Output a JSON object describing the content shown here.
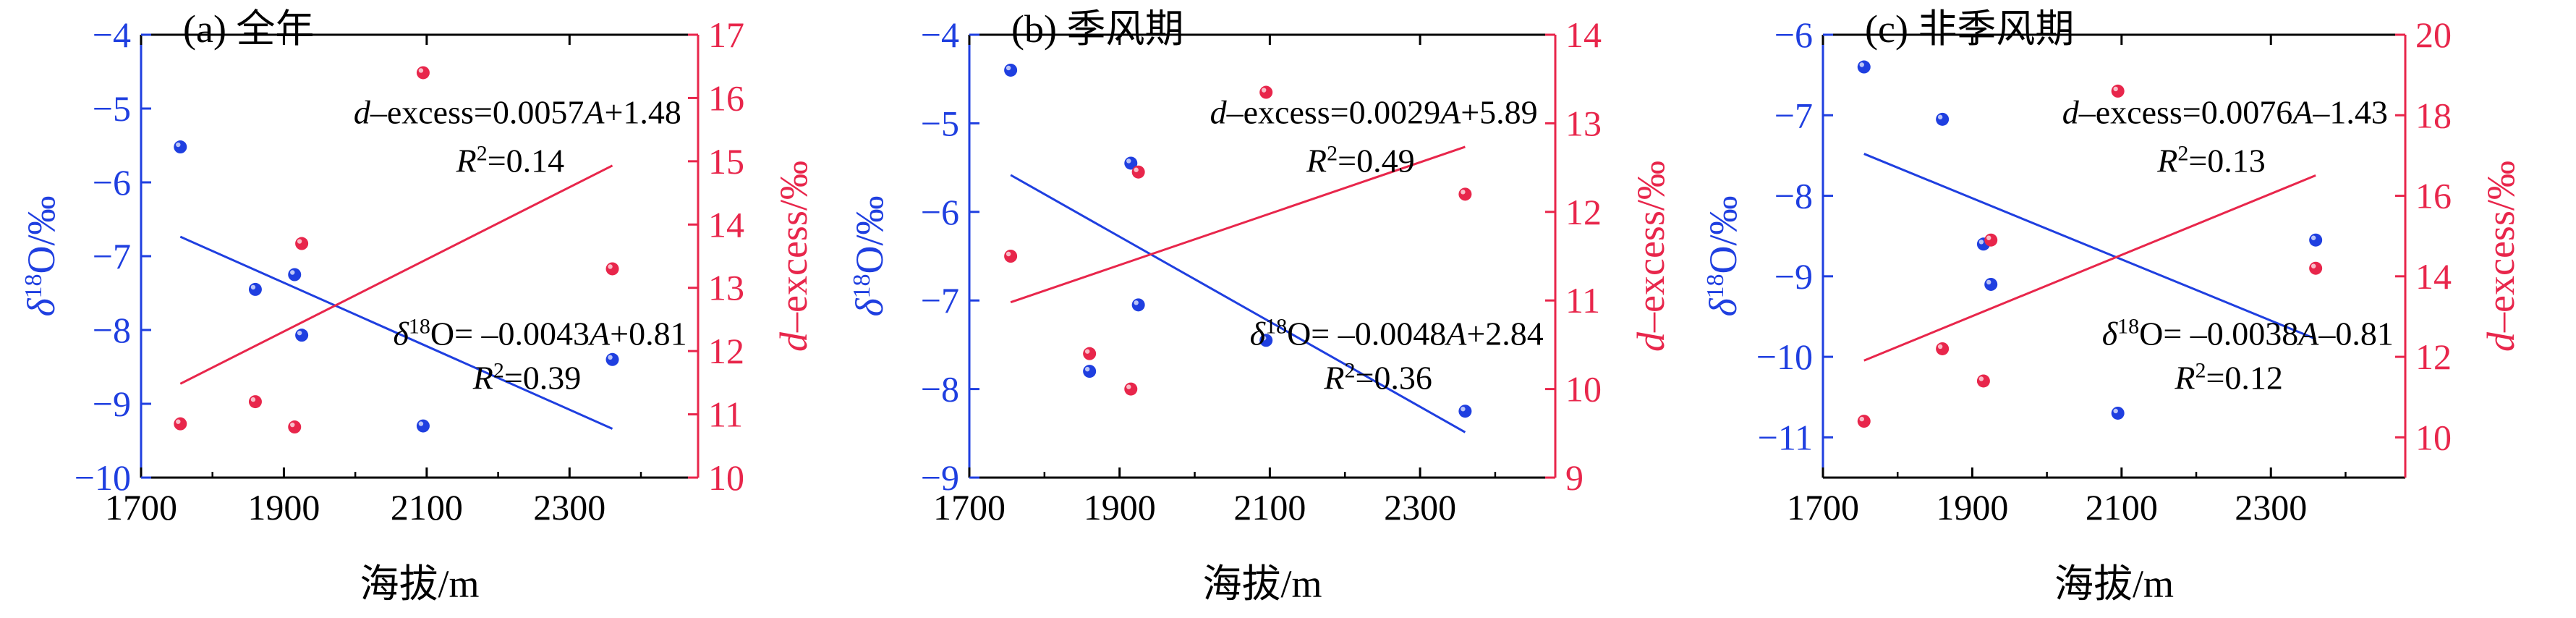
{
  "colors": {
    "blue": "#1f3fe0",
    "red": "#e8264b",
    "axis": "#000000"
  },
  "chart_data": [
    {
      "type": "scatter",
      "panel_label": "(a) 全年",
      "xlabel": "海拔/m",
      "ylabel_left": "δ18O/‰",
      "ylabel_right": "d-excess/‰",
      "x_ticks": [
        1700,
        1900,
        2100,
        2300
      ],
      "xlim": [
        1700,
        2480
      ],
      "ylim_left": [
        -10,
        -4
      ],
      "ylim_right": [
        10,
        17
      ],
      "y_ticks_left": [
        -10,
        -9,
        -8,
        -7,
        -6,
        -5,
        -4
      ],
      "y_ticks_right": [
        10,
        11,
        12,
        13,
        14,
        15,
        16,
        17
      ],
      "series": [
        {
          "axis": "left",
          "color": "blue",
          "points": [
            [
              1755,
              -5.52
            ],
            [
              1860,
              -7.45
            ],
            [
              1915,
              -7.25
            ],
            [
              1925,
              -8.07
            ],
            [
              2095,
              -9.3
            ],
            [
              2360,
              -8.4
            ]
          ],
          "fit": {
            "slope": -0.0043,
            "intercept": 0.81,
            "x_range": [
              1755,
              2360
            ]
          }
        },
        {
          "axis": "right",
          "color": "red",
          "points": [
            [
              1755,
              10.85
            ],
            [
              1860,
              11.2
            ],
            [
              1915,
              10.8
            ],
            [
              1925,
              13.7
            ],
            [
              2095,
              16.4
            ],
            [
              2360,
              13.3
            ]
          ],
          "fit": {
            "slope": 0.0057,
            "intercept": 1.48,
            "x_range": [
              1755,
              2360
            ]
          }
        }
      ],
      "annotations": [
        {
          "id": "d_eq",
          "prefix": "d",
          "text": "–excess=0.0057",
          "var": "A",
          "tail": "+1.48"
        },
        {
          "id": "d_r2",
          "prefix": "R",
          "sup": "2",
          "text": "=0.14"
        },
        {
          "id": "o_eq",
          "prefix": "δ",
          "sup": "18",
          "text": "O= –0.0043",
          "var": "A",
          "tail": "+0.81"
        },
        {
          "id": "o_r2",
          "prefix": "R",
          "sup": "2",
          "text": "=0.39"
        }
      ]
    },
    {
      "type": "scatter",
      "panel_label": "(b) 季风期",
      "xlabel": "海拔/m",
      "ylabel_left": "δ18O/‰",
      "ylabel_right": "d-excess/‰",
      "x_ticks": [
        1700,
        1900,
        2100,
        2300
      ],
      "xlim": [
        1700,
        2480
      ],
      "ylim_left": [
        -9,
        -4
      ],
      "ylim_right": [
        9,
        14
      ],
      "y_ticks_left": [
        -9,
        -8,
        -7,
        -6,
        -5,
        -4
      ],
      "y_ticks_right": [
        9,
        10,
        11,
        12,
        13,
        14
      ],
      "series": [
        {
          "axis": "left",
          "color": "blue",
          "points": [
            [
              1755,
              -4.4
            ],
            [
              1860,
              -7.8
            ],
            [
              1915,
              -5.45
            ],
            [
              1925,
              -7.05
            ],
            [
              2095,
              -7.45
            ],
            [
              2360,
              -8.25
            ]
          ],
          "fit": {
            "slope": -0.0048,
            "intercept": 2.84,
            "x_range": [
              1755,
              2360
            ]
          }
        },
        {
          "axis": "right",
          "color": "red",
          "points": [
            [
              1755,
              11.5
            ],
            [
              1860,
              10.4
            ],
            [
              1915,
              10.0
            ],
            [
              1925,
              12.45
            ],
            [
              2095,
              13.35
            ],
            [
              2360,
              12.2
            ]
          ],
          "fit": {
            "slope": 0.0029,
            "intercept": 5.89,
            "x_range": [
              1755,
              2360
            ]
          }
        }
      ],
      "annotations": [
        {
          "id": "d_eq",
          "prefix": "d",
          "text": "–excess=0.0029",
          "var": "A",
          "tail": "+5.89"
        },
        {
          "id": "d_r2",
          "prefix": "R",
          "sup": "2",
          "text": "=0.49"
        },
        {
          "id": "o_eq",
          "prefix": "δ",
          "sup": "18",
          "text": "O= –0.0048",
          "var": "A",
          "tail": "+2.84"
        },
        {
          "id": "o_r2",
          "prefix": "R",
          "sup": "2",
          "text": "=0.36"
        }
      ]
    },
    {
      "type": "scatter",
      "panel_label": "(c) 非季风期",
      "xlabel": "海拔/m",
      "ylabel_left": "δ18O/‰",
      "ylabel_right": "d-excess/‰",
      "x_ticks": [
        1700,
        1900,
        2100,
        2300
      ],
      "xlim": [
        1700,
        2480
      ],
      "ylim_left": [
        -11.5,
        -6
      ],
      "ylim_right": [
        9,
        20
      ],
      "y_ticks_left": [
        -11,
        -10,
        -9,
        -8,
        -7,
        -6
      ],
      "y_ticks_right": [
        10,
        12,
        14,
        16,
        18,
        20
      ],
      "series": [
        {
          "axis": "left",
          "color": "blue",
          "points": [
            [
              1755,
              -6.4
            ],
            [
              1860,
              -7.05
            ],
            [
              1915,
              -8.6
            ],
            [
              1925,
              -9.1
            ],
            [
              2095,
              -10.7
            ],
            [
              2360,
              -8.55
            ]
          ],
          "fit": {
            "slope": -0.0038,
            "intercept": -0.81,
            "x_range": [
              1755,
              2360
            ]
          }
        },
        {
          "axis": "right",
          "color": "red",
          "points": [
            [
              1755,
              10.4
            ],
            [
              1860,
              12.2
            ],
            [
              1915,
              11.4
            ],
            [
              1925,
              14.9
            ],
            [
              2095,
              18.6
            ],
            [
              2360,
              14.2
            ]
          ],
          "fit": {
            "slope": 0.0076,
            "intercept": -1.43,
            "x_range": [
              1755,
              2360
            ]
          }
        }
      ],
      "annotations": [
        {
          "id": "d_eq",
          "prefix": "d",
          "text": "–excess=0.0076",
          "var": "A",
          "tail": "–1.43"
        },
        {
          "id": "d_r2",
          "prefix": "R",
          "sup": "2",
          "text": "=0.13"
        },
        {
          "id": "o_eq",
          "prefix": "δ",
          "sup": "18",
          "text": "O= –0.0038",
          "var": "A",
          "tail": "–0.81"
        },
        {
          "id": "o_r2",
          "prefix": "R",
          "sup": "2",
          "text": "=0.12"
        }
      ]
    }
  ]
}
